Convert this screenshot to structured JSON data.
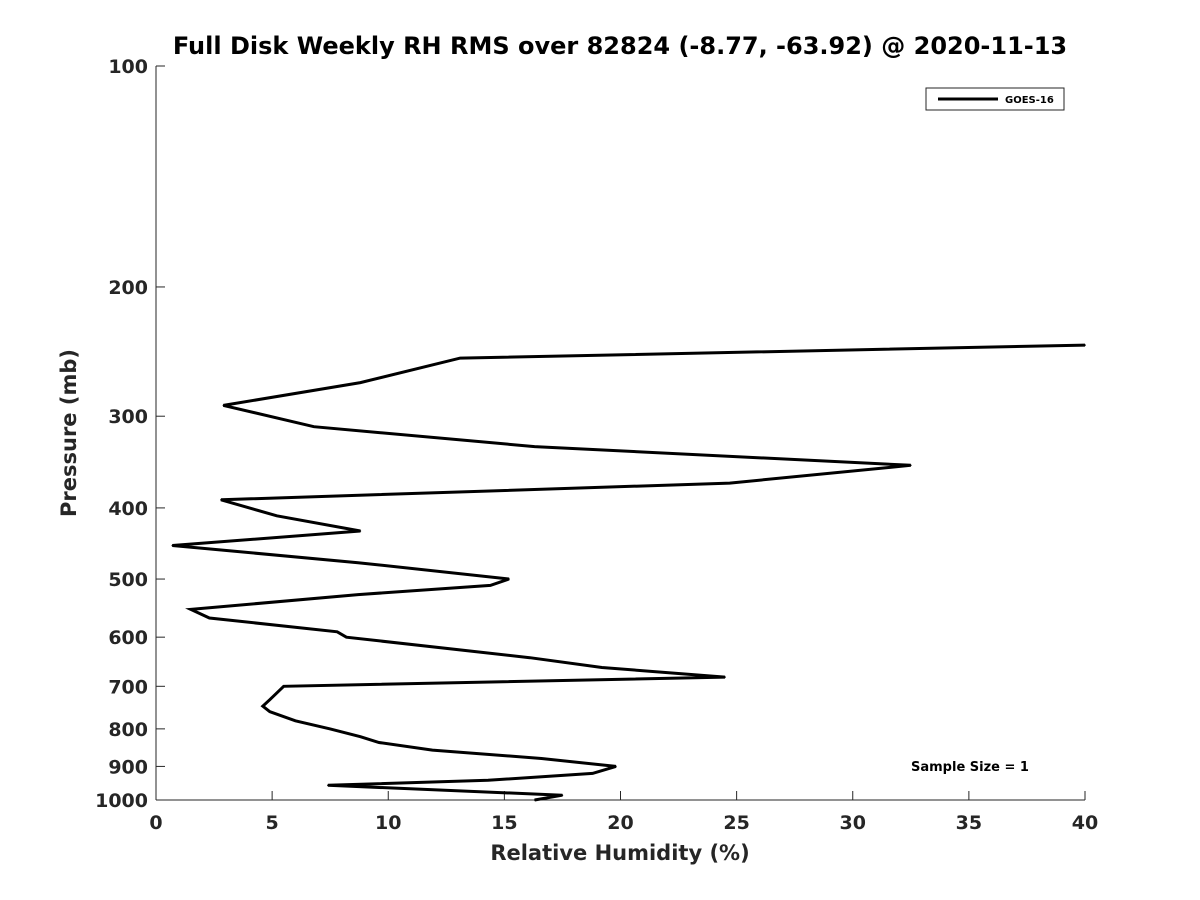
{
  "chart_data": {
    "type": "line",
    "title": "Full Disk Weekly RH RMS over 82824 (-8.77, -63.92) @ 2020-11-13",
    "xlabel": "Relative Humidity (%)",
    "ylabel": "Pressure (mb)",
    "xlim": [
      0,
      40
    ],
    "ylim": [
      100,
      1000
    ],
    "y_scale": "log",
    "y_reversed": true,
    "x_ticks": [
      "0",
      "5",
      "10",
      "15",
      "20",
      "25",
      "30",
      "35",
      "40"
    ],
    "y_ticks": [
      "100",
      "200",
      "300",
      "400",
      "500",
      "600",
      "700",
      "800",
      "900",
      "1000"
    ],
    "grid": false,
    "legend_position": "top-right",
    "series": [
      {
        "name": "GOES-16",
        "color": "#000000",
        "points": [
          {
            "x": 16.3,
            "y": 1000
          },
          {
            "x": 17.5,
            "y": 985
          },
          {
            "x": 7.4,
            "y": 955
          },
          {
            "x": 14.3,
            "y": 940
          },
          {
            "x": 18.8,
            "y": 920
          },
          {
            "x": 19.8,
            "y": 900
          },
          {
            "x": 16.6,
            "y": 878
          },
          {
            "x": 11.9,
            "y": 855
          },
          {
            "x": 9.6,
            "y": 835
          },
          {
            "x": 8.8,
            "y": 820
          },
          {
            "x": 7.5,
            "y": 800
          },
          {
            "x": 6.0,
            "y": 780
          },
          {
            "x": 4.9,
            "y": 758
          },
          {
            "x": 4.6,
            "y": 745
          },
          {
            "x": 4.9,
            "y": 730
          },
          {
            "x": 5.5,
            "y": 700
          },
          {
            "x": 24.5,
            "y": 680
          },
          {
            "x": 19.2,
            "y": 660
          },
          {
            "x": 16.1,
            "y": 640
          },
          {
            "x": 8.2,
            "y": 600
          },
          {
            "x": 7.8,
            "y": 590
          },
          {
            "x": 2.3,
            "y": 565
          },
          {
            "x": 1.5,
            "y": 550
          },
          {
            "x": 8.7,
            "y": 525
          },
          {
            "x": 14.4,
            "y": 510
          },
          {
            "x": 15.2,
            "y": 500
          },
          {
            "x": 8.7,
            "y": 475
          },
          {
            "x": 0.7,
            "y": 450
          },
          {
            "x": 8.8,
            "y": 430
          },
          {
            "x": 5.2,
            "y": 410
          },
          {
            "x": 2.8,
            "y": 390
          },
          {
            "x": 24.7,
            "y": 370
          },
          {
            "x": 32.5,
            "y": 350
          },
          {
            "x": 16.3,
            "y": 330
          },
          {
            "x": 6.8,
            "y": 310
          },
          {
            "x": 2.9,
            "y": 290
          },
          {
            "x": 8.8,
            "y": 270
          },
          {
            "x": 13.1,
            "y": 250
          },
          {
            "x": 40.0,
            "y": 240
          }
        ]
      }
    ],
    "annotations": [
      "Sample Size = 1"
    ]
  }
}
